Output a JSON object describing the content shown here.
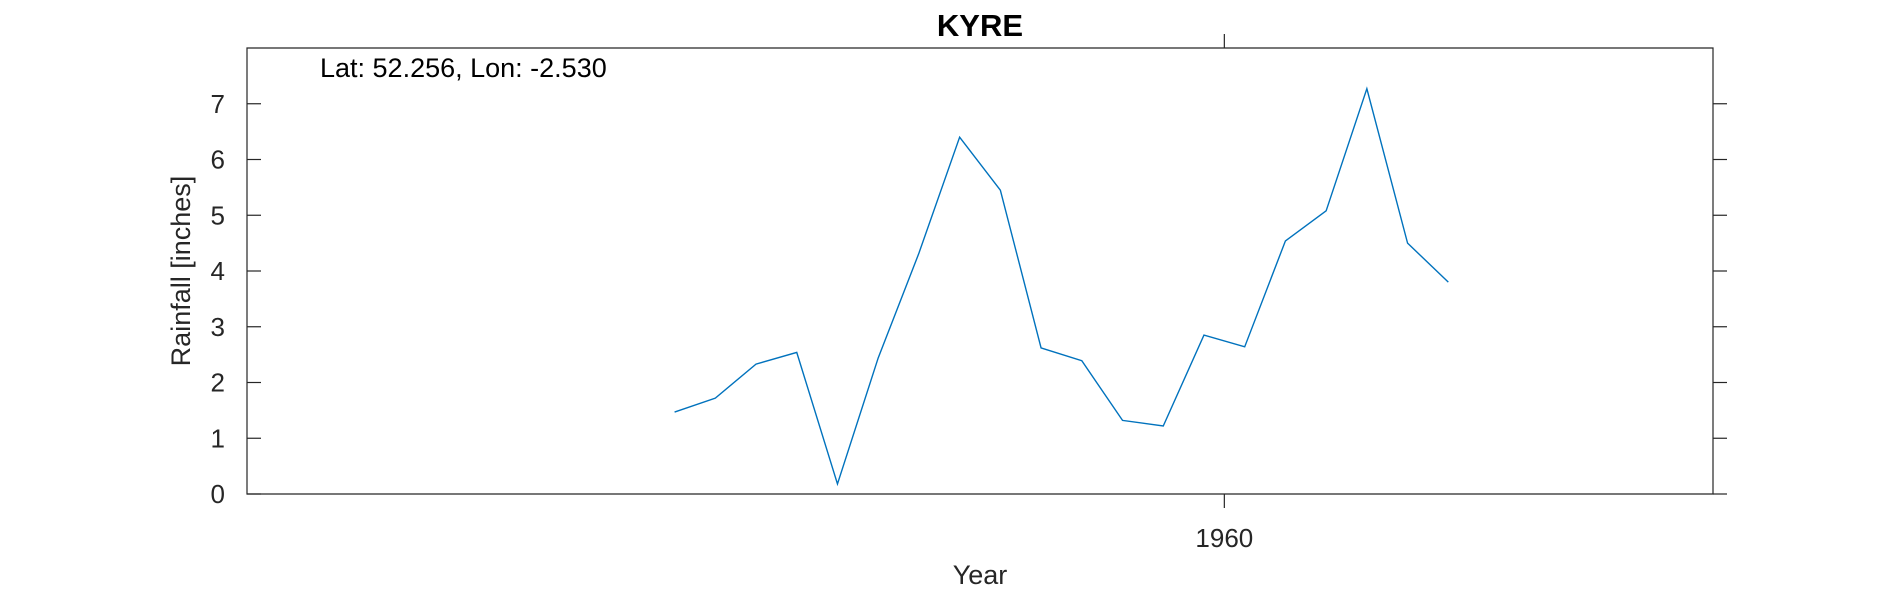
{
  "chart_data": {
    "type": "line",
    "title": "KYRE",
    "xlabel": "Year",
    "ylabel": "Rainfall [inches]",
    "annotation": "Lat: 52.256, Lon: -2.530",
    "xlim": [
      1936,
      1972
    ],
    "ylim": [
      0,
      8
    ],
    "xticks": [
      1960
    ],
    "yticks": [
      0,
      1,
      2,
      3,
      4,
      5,
      6,
      7
    ],
    "grid": false,
    "series": [
      {
        "color": "#0072BD",
        "x": [
          1946.5,
          1947.5,
          1948.5,
          1949.5,
          1950.5,
          1951.5,
          1952.5,
          1953.5,
          1954.5,
          1955.5,
          1956.5,
          1957.5,
          1958.5,
          1959.5,
          1960.5,
          1961.5,
          1962.5,
          1963.5,
          1964.5,
          1965.5
        ],
        "y": [
          1.47,
          1.72,
          2.33,
          2.54,
          0.18,
          2.44,
          4.32,
          6.4,
          5.45,
          2.62,
          2.39,
          1.32,
          1.22,
          2.85,
          2.64,
          4.54,
          5.08,
          7.27,
          4.5,
          3.8
        ]
      }
    ]
  }
}
